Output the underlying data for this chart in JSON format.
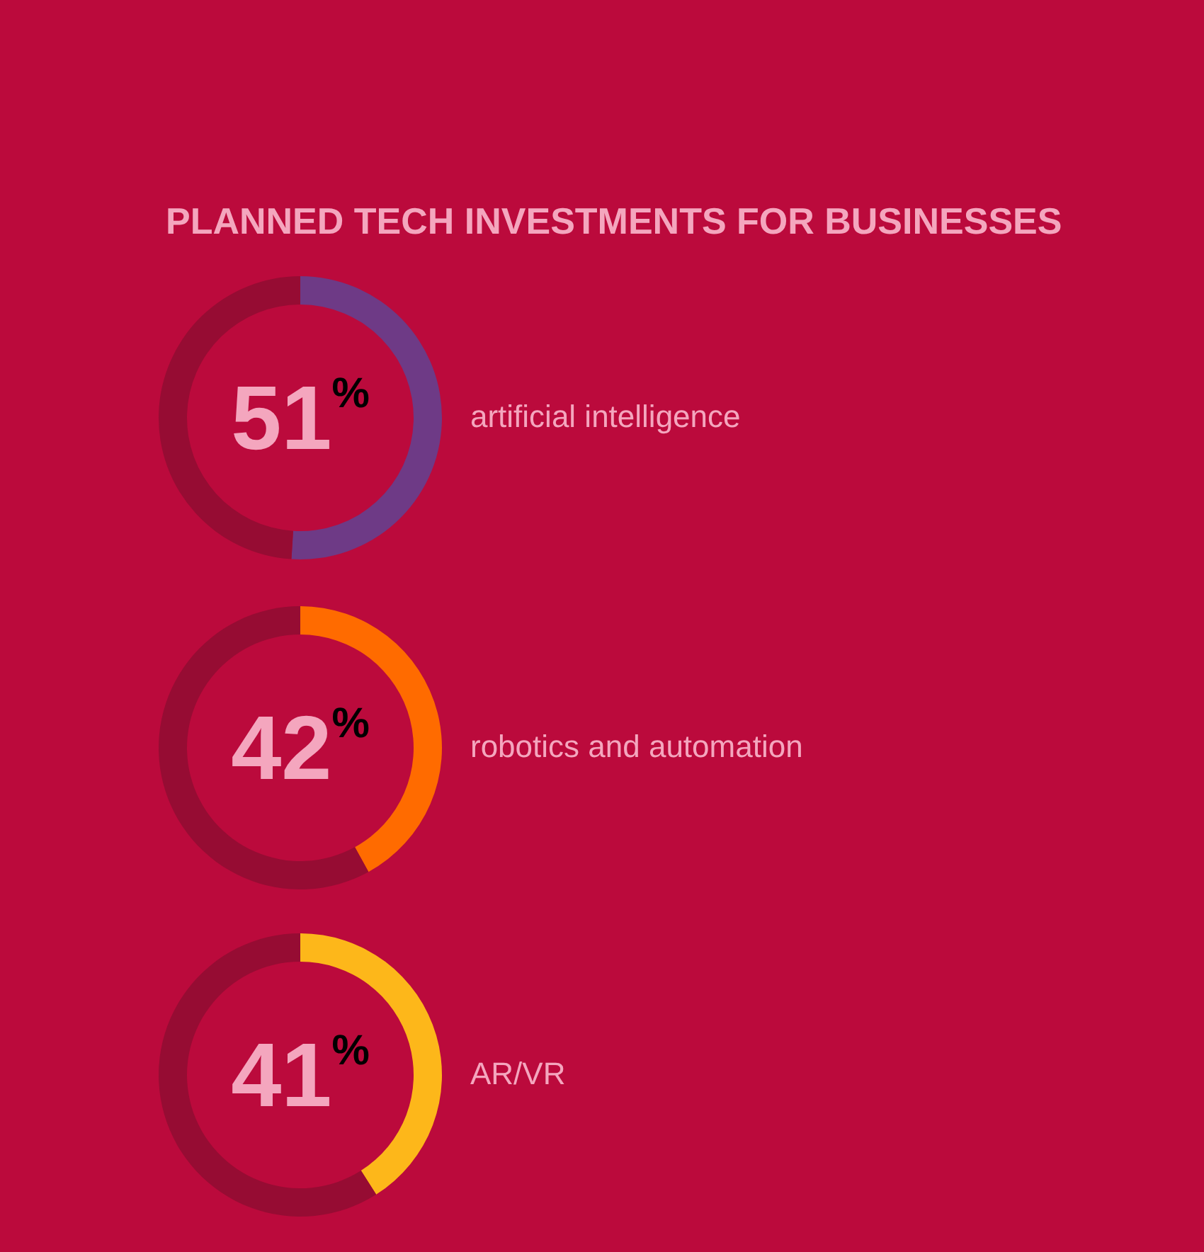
{
  "chart_data": [
    {
      "type": "donut",
      "title": "PLANNED TECH INVESTMENTS FOR BUSINESSES",
      "categories": [
        "artificial intelligence",
        null
      ],
      "values": [
        51,
        49
      ],
      "colors": [
        "#6e3a86",
        "#960c33"
      ],
      "value_labels": [
        "51%",
        null
      ]
    },
    {
      "type": "donut",
      "categories": [
        "robotics and automation",
        null
      ],
      "values": [
        42,
        58
      ],
      "colors": [
        "#ff6b00",
        "#960c33"
      ],
      "value_labels": [
        "42%",
        null
      ]
    },
    {
      "type": "donut",
      "categories": [
        "AR/VR",
        null
      ],
      "values": [
        41,
        59
      ],
      "colors": [
        "#fdb71a",
        "#960c33"
      ],
      "value_labels": [
        "41%",
        null
      ]
    }
  ]
}
